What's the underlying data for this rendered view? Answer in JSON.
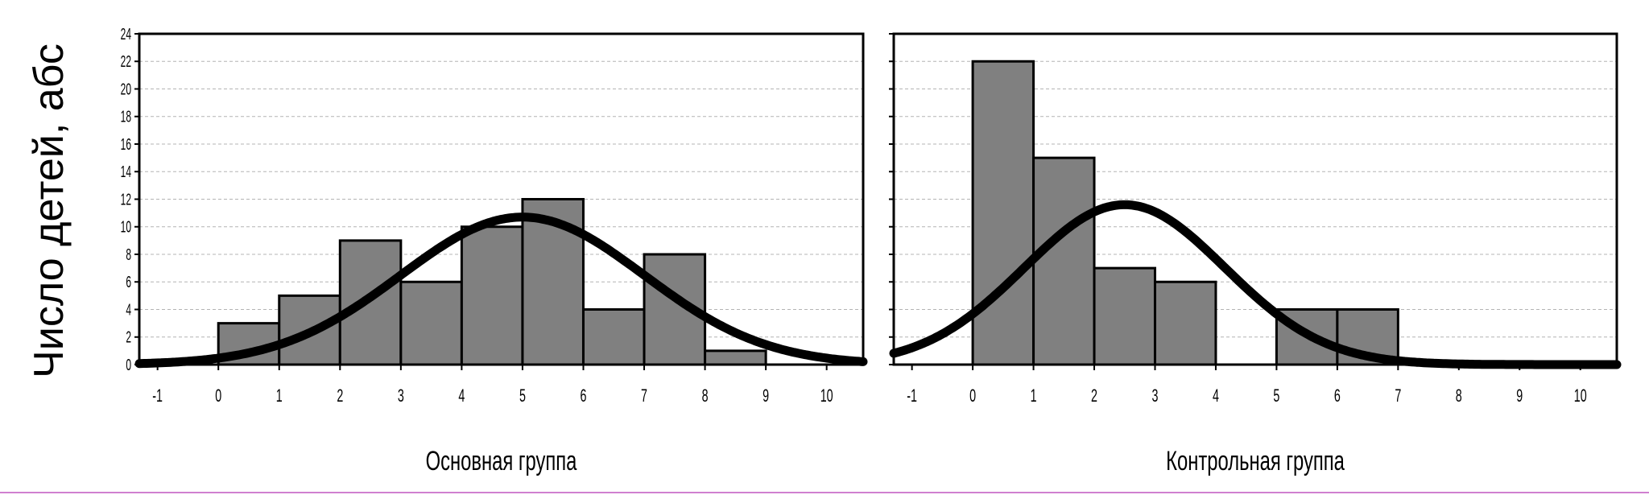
{
  "colors": {
    "bar_fill": "#808080",
    "bar_stroke": "#000000",
    "curve": "#000000",
    "grid": "#b4b4b4",
    "frame": "#000000",
    "bottom_rule": "#d080d0"
  },
  "chart_data": [
    {
      "type": "bar",
      "subtype": "histogram with fitted normal curve",
      "title": "",
      "xlabel": "Основная группа",
      "ylabel": "Число детей, абс",
      "xlim": [
        -1.3,
        10.6
      ],
      "ylim": [
        0,
        24
      ],
      "x_ticks": [
        -1,
        0,
        1,
        2,
        3,
        4,
        5,
        6,
        7,
        8,
        9,
        10
      ],
      "y_ticks": [
        0,
        2,
        4,
        6,
        8,
        10,
        12,
        14,
        16,
        18,
        20,
        22,
        24
      ],
      "grid": true,
      "bins": [
        {
          "from": 0,
          "to": 1,
          "value": 3
        },
        {
          "from": 1,
          "to": 2,
          "value": 5
        },
        {
          "from": 2,
          "to": 3,
          "value": 9
        },
        {
          "from": 3,
          "to": 4,
          "value": 6
        },
        {
          "from": 4,
          "to": 5,
          "value": 10
        },
        {
          "from": 5,
          "to": 6,
          "value": 12
        },
        {
          "from": 6,
          "to": 7,
          "value": 4
        },
        {
          "from": 7,
          "to": 8,
          "value": 8
        },
        {
          "from": 8,
          "to": 9,
          "value": 1
        }
      ],
      "normal_curve": {
        "mean": 5.0,
        "sd": 2.0,
        "peak": 10.7
      }
    },
    {
      "type": "bar",
      "subtype": "histogram with fitted normal curve",
      "title": "",
      "xlabel": "Контрольная группа",
      "ylabel": "",
      "xlim": [
        -1.3,
        10.6
      ],
      "ylim": [
        0,
        24
      ],
      "x_ticks": [
        -1,
        0,
        1,
        2,
        3,
        4,
        5,
        6,
        7,
        8,
        9,
        10
      ],
      "y_ticks": [
        0,
        2,
        4,
        6,
        8,
        10,
        12,
        14,
        16,
        18,
        20,
        22,
        24
      ],
      "grid": true,
      "bins": [
        {
          "from": 0,
          "to": 1,
          "value": 22
        },
        {
          "from": 1,
          "to": 2,
          "value": 15
        },
        {
          "from": 2,
          "to": 3,
          "value": 7
        },
        {
          "from": 3,
          "to": 4,
          "value": 6
        },
        {
          "from": 4,
          "to": 5,
          "value": 0
        },
        {
          "from": 5,
          "to": 6,
          "value": 4
        },
        {
          "from": 6,
          "to": 7,
          "value": 4
        }
      ],
      "normal_curve": {
        "mean": 2.5,
        "sd": 1.65,
        "peak": 11.6
      }
    }
  ]
}
